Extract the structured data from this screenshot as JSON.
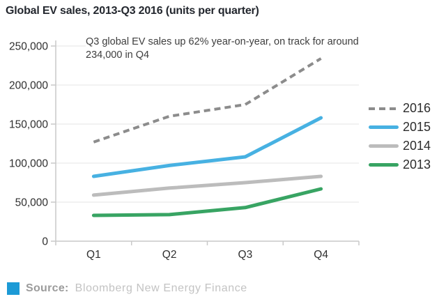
{
  "title": "Global EV sales, 2013-Q3 2016 (units per quarter)",
  "annotation": "Q3 global EV sales up 62% year-on-year, on track for around 234,000 in Q4",
  "source": {
    "label": "Source:",
    "text": "Bloomberg New Energy Finance",
    "square_color": "#1c9ad6"
  },
  "colors": {
    "grid": "#ededed",
    "axis": "#c9c9c9",
    "tick_label": "#2f2f2f",
    "title_text": "#23272e",
    "annotation_text": "#3e3e3e"
  },
  "chart_data": {
    "type": "line",
    "title": "Global EV sales, 2013-Q3 2016 (units per quarter)",
    "categories": [
      "Q1",
      "Q2",
      "Q3",
      "Q4"
    ],
    "series": [
      {
        "name": "2016",
        "values": [
          127000,
          160000,
          175000,
          234000
        ],
        "color": "#8c8c8c",
        "style": "dashed"
      },
      {
        "name": "2015",
        "values": [
          83000,
          97000,
          108000,
          158000
        ],
        "color": "#47b1e2",
        "style": "solid"
      },
      {
        "name": "2014",
        "values": [
          59000,
          68000,
          75000,
          83000
        ],
        "color": "#bcbcbc",
        "style": "solid"
      },
      {
        "name": "2013",
        "values": [
          33000,
          34000,
          43000,
          67000
        ],
        "color": "#38a463",
        "style": "solid"
      }
    ],
    "xlabel": "",
    "ylabel": "",
    "ylim": [
      0,
      250000
    ],
    "ytick_step": 50000,
    "ytick_labels": [
      "0",
      "50,000",
      "100,000",
      "150,000",
      "200,000",
      "250,000"
    ],
    "grid": true,
    "legend_position": "right",
    "annotation": "Q3 global EV sales up 62% year-on-year, on track for around 234,000 in Q4"
  }
}
